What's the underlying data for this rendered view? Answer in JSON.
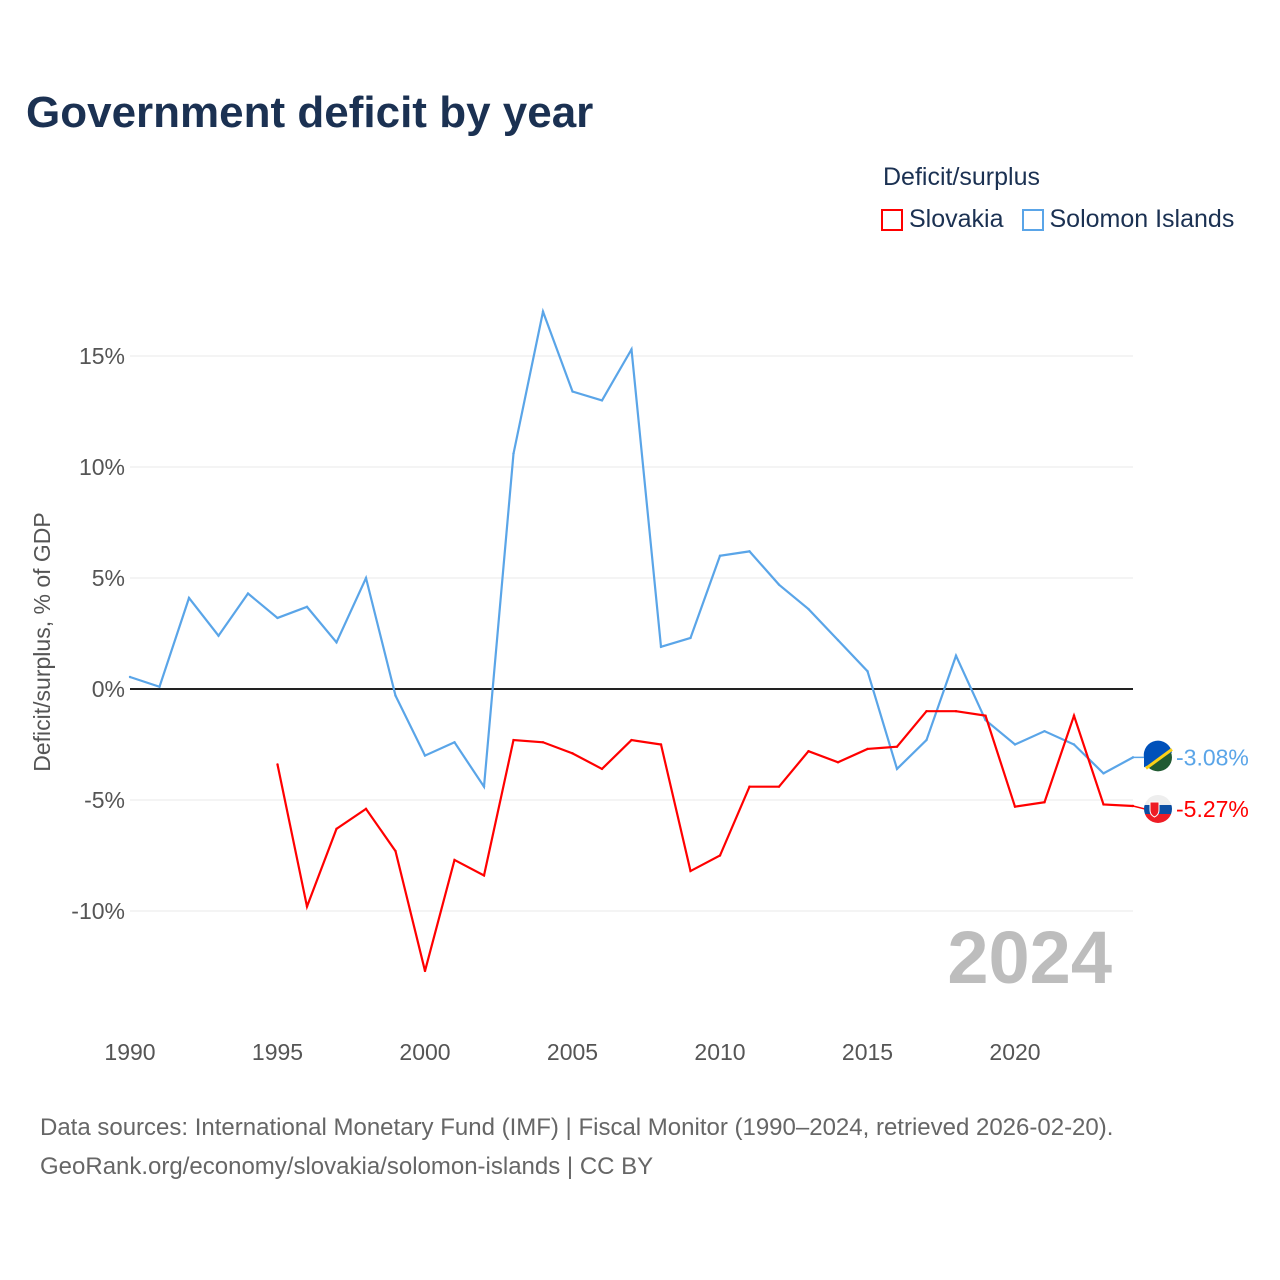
{
  "title": "Government deficit by year",
  "legend": {
    "title": "Deficit/surplus",
    "items": [
      {
        "label": "Slovakia",
        "color": "#ff0000"
      },
      {
        "label": "Solomon Islands",
        "color": "#5aa5e8"
      }
    ]
  },
  "source_line1": "Data sources: International Monetary Fund (IMF) | Fiscal Monitor (1990–2024, retrieved 2026-02-20).",
  "source_line2": "GeoRank.org/economy/slovakia/solomon-islands | CC BY",
  "chart_data": {
    "type": "line",
    "title": "Government deficit by year",
    "xlabel": "",
    "ylabel": "Deficit/surplus, % of GDP",
    "xlim": [
      1990,
      2024
    ],
    "ylim": [
      -14.5,
      18
    ],
    "x_ticks": [
      1990,
      1995,
      2000,
      2005,
      2010,
      2015,
      2020
    ],
    "y_ticks": [
      {
        "v": 15,
        "label": "15%"
      },
      {
        "v": 10,
        "label": "10%"
      },
      {
        "v": 5,
        "label": "5%"
      },
      {
        "v": 0,
        "label": "0%"
      },
      {
        "v": -5,
        "label": "-5%"
      },
      {
        "v": -10,
        "label": "-10%"
      }
    ],
    "year_watermark": "2024",
    "legend_placement": "top-right",
    "series": [
      {
        "name": "Solomon Islands",
        "color": "#5aa5e8",
        "end_label": "-3.08%",
        "x": [
          1990,
          1991,
          1992,
          1993,
          1994,
          1995,
          1996,
          1997,
          1998,
          1999,
          2000,
          2001,
          2002,
          2003,
          2004,
          2005,
          2006,
          2007,
          2008,
          2009,
          2010,
          2011,
          2012,
          2013,
          2014,
          2015,
          2016,
          2017,
          2018,
          2019,
          2020,
          2021,
          2022,
          2023,
          2024
        ],
        "values": [
          0.54,
          0.1,
          4.1,
          2.4,
          4.3,
          3.2,
          3.7,
          2.1,
          5.0,
          -0.3,
          -3.0,
          -2.4,
          -4.4,
          10.6,
          17.0,
          13.4,
          13.0,
          15.3,
          1.9,
          2.3,
          6.0,
          6.2,
          4.7,
          3.6,
          2.2,
          0.8,
          -3.6,
          -2.3,
          1.5,
          -1.4,
          -2.5,
          -1.9,
          -2.5,
          -3.8,
          -3.08
        ]
      },
      {
        "name": "Slovakia",
        "color": "#ff0000",
        "end_label": "-5.27%",
        "x": [
          1995,
          1996,
          1997,
          1998,
          1999,
          2000,
          2001,
          2002,
          2003,
          2004,
          2005,
          2006,
          2007,
          2008,
          2009,
          2010,
          2011,
          2012,
          2013,
          2014,
          2015,
          2016,
          2017,
          2018,
          2019,
          2020,
          2021,
          2022,
          2023,
          2024
        ],
        "values": [
          -3.4,
          -9.8,
          -6.3,
          -5.4,
          -7.3,
          -12.7,
          -7.7,
          -8.4,
          -2.3,
          -2.4,
          -2.9,
          -3.6,
          -2.3,
          -2.5,
          -8.2,
          -7.5,
          -4.4,
          -4.4,
          -2.8,
          -3.3,
          -2.7,
          -2.6,
          -1.0,
          -1.0,
          -1.2,
          -5.3,
          -5.1,
          -1.2,
          -5.2,
          -5.27
        ]
      }
    ]
  }
}
